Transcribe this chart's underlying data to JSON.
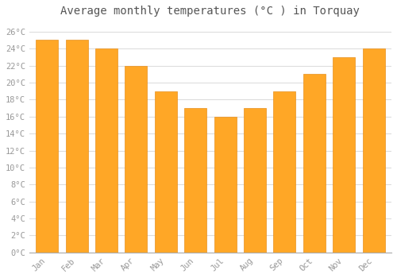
{
  "title": "Average monthly temperatures (°C ) in Torquay",
  "months": [
    "Jan",
    "Feb",
    "Mar",
    "Apr",
    "May",
    "Jun",
    "Jul",
    "Aug",
    "Sep",
    "Oct",
    "Nov",
    "Dec"
  ],
  "values": [
    25.0,
    25.0,
    24.0,
    22.0,
    19.0,
    17.0,
    16.0,
    17.0,
    19.0,
    21.0,
    23.0,
    24.0
  ],
  "bar_color": "#FFA726",
  "bar_edge_color": "#E69020",
  "ylim": [
    0,
    27
  ],
  "yticks": [
    0,
    2,
    4,
    6,
    8,
    10,
    12,
    14,
    16,
    18,
    20,
    22,
    24,
    26
  ],
  "background_color": "#ffffff",
  "grid_color": "#dddddd",
  "title_fontsize": 10,
  "tick_fontsize": 7.5,
  "tick_color": "#999999",
  "title_color": "#555555"
}
